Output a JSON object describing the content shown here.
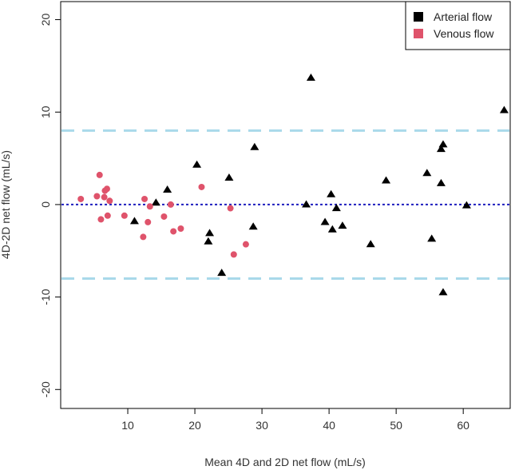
{
  "chart_data": {
    "type": "scatter",
    "title": "",
    "xlabel": "Mean 4D and 2D net flow (mL/s)",
    "ylabel": "4D-2D net flow (mL/s)",
    "xlim": [
      0,
      67
    ],
    "ylim": [
      -20,
      20
    ],
    "xticks": [
      10,
      20,
      30,
      40,
      50,
      60
    ],
    "yticks": [
      -20,
      -10,
      0,
      10,
      20
    ],
    "grid": false,
    "legend_position": "top-right",
    "reference_lines": [
      {
        "y": 0,
        "style": "dotted",
        "color": "#1f1fbf"
      },
      {
        "y": 8.0,
        "style": "dashed",
        "color": "#a9d9ea"
      },
      {
        "y": -8.0,
        "style": "dashed",
        "color": "#a9d9ea"
      }
    ],
    "series": [
      {
        "name": "Arterial flow",
        "marker": "triangle",
        "color": "#000000",
        "points": [
          [
            11.0,
            -1.8
          ],
          [
            14.2,
            0.2
          ],
          [
            15.9,
            1.6
          ],
          [
            20.3,
            4.3
          ],
          [
            22.0,
            -4.0
          ],
          [
            22.2,
            -3.1
          ],
          [
            24.0,
            -7.4
          ],
          [
            25.1,
            2.9
          ],
          [
            28.7,
            -2.4
          ],
          [
            28.9,
            6.2
          ],
          [
            36.6,
            0.0
          ],
          [
            37.3,
            13.7
          ],
          [
            39.4,
            -1.9
          ],
          [
            40.3,
            1.1
          ],
          [
            40.5,
            -2.7
          ],
          [
            41.1,
            -0.4
          ],
          [
            42.0,
            -2.3
          ],
          [
            46.2,
            -4.3
          ],
          [
            48.5,
            2.6
          ],
          [
            54.6,
            3.4
          ],
          [
            55.3,
            -3.7
          ],
          [
            56.7,
            6.0
          ],
          [
            56.7,
            2.3
          ],
          [
            57.0,
            6.5
          ],
          [
            57.0,
            -9.5
          ],
          [
            60.5,
            -0.1
          ],
          [
            66.1,
            10.2
          ]
        ]
      },
      {
        "name": "Venous flow",
        "marker": "circle",
        "color": "#df536b",
        "points": [
          [
            3.0,
            0.6
          ],
          [
            5.4,
            0.9
          ],
          [
            5.8,
            3.2
          ],
          [
            6.0,
            -1.6
          ],
          [
            6.5,
            0.8
          ],
          [
            6.6,
            1.5
          ],
          [
            6.9,
            1.7
          ],
          [
            7.0,
            -1.2
          ],
          [
            7.3,
            0.4
          ],
          [
            9.5,
            -1.2
          ],
          [
            12.3,
            -3.5
          ],
          [
            12.5,
            0.6
          ],
          [
            13.0,
            -1.9
          ],
          [
            13.3,
            -0.2
          ],
          [
            15.4,
            -1.3
          ],
          [
            16.4,
            0.0
          ],
          [
            16.8,
            -2.9
          ],
          [
            17.9,
            -2.6
          ],
          [
            21.0,
            1.9
          ],
          [
            25.3,
            -0.4
          ],
          [
            25.8,
            -5.4
          ],
          [
            27.6,
            -4.3
          ]
        ]
      }
    ]
  }
}
